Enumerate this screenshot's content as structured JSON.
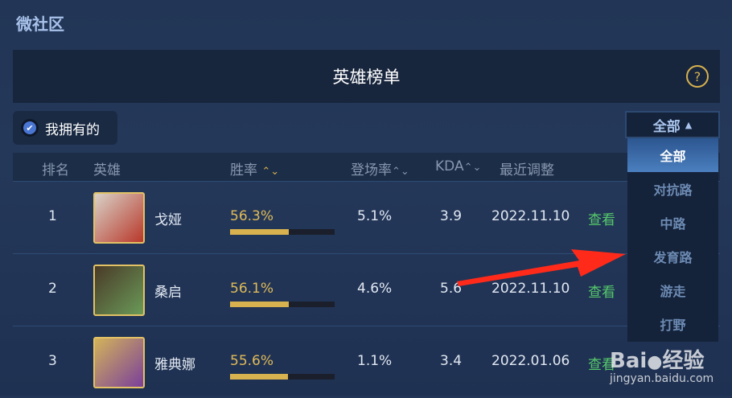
{
  "app_title": "微社区",
  "header": {
    "title": "英雄榜单",
    "help_icon": "question-circle-icon"
  },
  "filter": {
    "owned_label": "我拥有的",
    "owned_checked": true
  },
  "table": {
    "columns": [
      "排名",
      "英雄",
      "胜率",
      "登场率",
      "KDA",
      "最近调整"
    ],
    "rows": [
      {
        "rank": "1",
        "hero": "戈娅",
        "win_rate": "56.3%",
        "win_rate_value": 56.3,
        "pick_rate": "5.1%",
        "kda": "3.9",
        "updated": "2022.11.10",
        "action": "查看"
      },
      {
        "rank": "2",
        "hero": "桑启",
        "win_rate": "56.1%",
        "win_rate_value": 56.1,
        "pick_rate": "4.6%",
        "kda": "5.6",
        "updated": "2022.11.10",
        "action": "查看"
      },
      {
        "rank": "3",
        "hero": "雅典娜",
        "win_rate": "55.6%",
        "win_rate_value": 55.6,
        "pick_rate": "1.1%",
        "kda": "3.4",
        "updated": "2022.01.06",
        "action": "查看"
      }
    ]
  },
  "dropdown": {
    "selected": "全部",
    "options": [
      "全部",
      "对抗路",
      "中路",
      "发育路",
      "游走",
      "打野"
    ]
  },
  "watermark": {
    "brand": "Baidu经验",
    "url": "jingyan.baidu.com"
  },
  "colors": {
    "accent": "#d8b24e",
    "selected": "#3f6fae",
    "view": "#55c86a"
  }
}
